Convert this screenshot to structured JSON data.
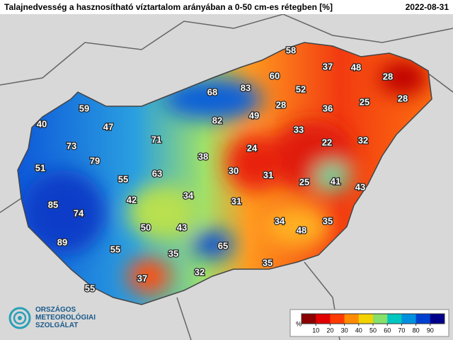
{
  "header": {
    "title": "Talajnedvesség a hasznosítható víztartalom arányában a 0-50 cm-es rétegben [%]",
    "date": "2022-08-31"
  },
  "stations": [
    58,
    37,
    48,
    28,
    60,
    83,
    68,
    52,
    25,
    28,
    59,
    28,
    36,
    40,
    47,
    82,
    49,
    33,
    73,
    71,
    24,
    22,
    32,
    79,
    38,
    51,
    55,
    63,
    30,
    31,
    25,
    41,
    43,
    42,
    34,
    31,
    85,
    74,
    50,
    43,
    34,
    48,
    35,
    89,
    55,
    35,
    65,
    35,
    32,
    37,
    55
  ],
  "logo": {
    "lines": [
      "ORSZÁGOS",
      "METEOROLÓGIAI",
      "SZOLGÁLAT"
    ]
  },
  "legend": {
    "unit": "%",
    "lim": [
      0,
      100
    ],
    "ticks": [
      10,
      20,
      30,
      40,
      50,
      60,
      70,
      80,
      90
    ],
    "colors": [
      "#8b0000",
      "#e00000",
      "#ff3a00",
      "#ff8c00",
      "#f2d200",
      "#86e06a",
      "#00c8c0",
      "#0090e0",
      "#0040d0",
      "#00008a"
    ]
  }
}
